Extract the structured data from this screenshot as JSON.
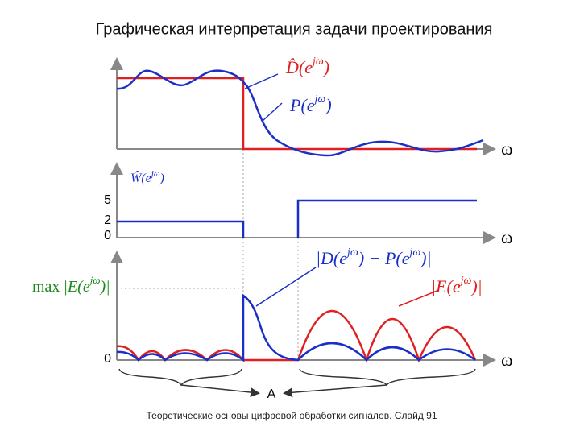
{
  "header": {
    "title": "Графическая интерпретация задачи проектирования"
  },
  "panels": [
    {
      "labels": [
        {
          "main": "D̂(e",
          "sup": "jω",
          "close": ")"
        },
        {
          "main": "P(e",
          "sup": "jω",
          "close": ")"
        }
      ],
      "axis": "ω"
    },
    {
      "labels": [
        {
          "main": "Ŵ(e",
          "sup": "jω",
          "close": ")"
        }
      ],
      "ticks": [
        "5",
        "2",
        "0"
      ],
      "axis": "ω"
    },
    {
      "labels": [
        {
          "main": "|D(e",
          "sup": "jω",
          "mid": ") − P(e",
          "sup2": "jω",
          "close": ")|"
        },
        {
          "main": "|E(e",
          "sup": "jω",
          "close": ")|"
        },
        {
          "pre": "max",
          "main": "|E(e",
          "sup": "jω",
          "close": ")|"
        }
      ],
      "ticks": [
        "0"
      ],
      "axis": "ω"
    }
  ],
  "brace_label": "A",
  "footer": "Теоретические основы цифровой обработки сигналов. Слайд 91"
}
